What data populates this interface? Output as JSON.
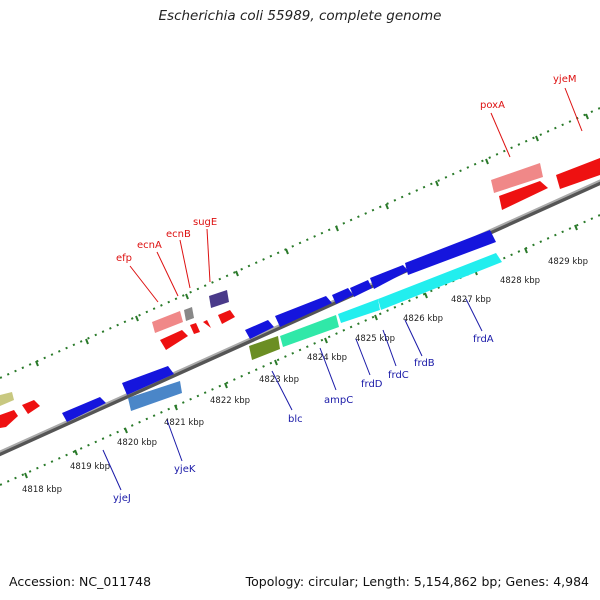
{
  "title": "Escherichia coli 55989, complete genome",
  "accession": "Accession: NC_011748",
  "topology": "Topology: circular; Length: 5,154,862 bp; Genes: 4,984",
  "kbp_labels": [
    "4818 kbp",
    "4819 kbp",
    "4820 kbp",
    "4821 kbp",
    "4822 kbp",
    "4823 kbp",
    "4824 kbp",
    "4825 kbp",
    "4826 kbp",
    "4827 kbp",
    "4828 kbp",
    "4829 kbp"
  ],
  "gene_labels_top": [
    "efp",
    "ecnA",
    "ecnB",
    "sugE",
    "poxA",
    "yjeM"
  ],
  "gene_labels_bottom": [
    "yjeJ",
    "yjeK",
    "blc",
    "ampC",
    "frdD",
    "frdC",
    "frdB",
    "frdA"
  ],
  "colors": {
    "forward_label": "#dd1111",
    "reverse_label": "#1a1aa8",
    "backbone": "#8a8a8a",
    "ticks": "#2a7a2a"
  }
}
